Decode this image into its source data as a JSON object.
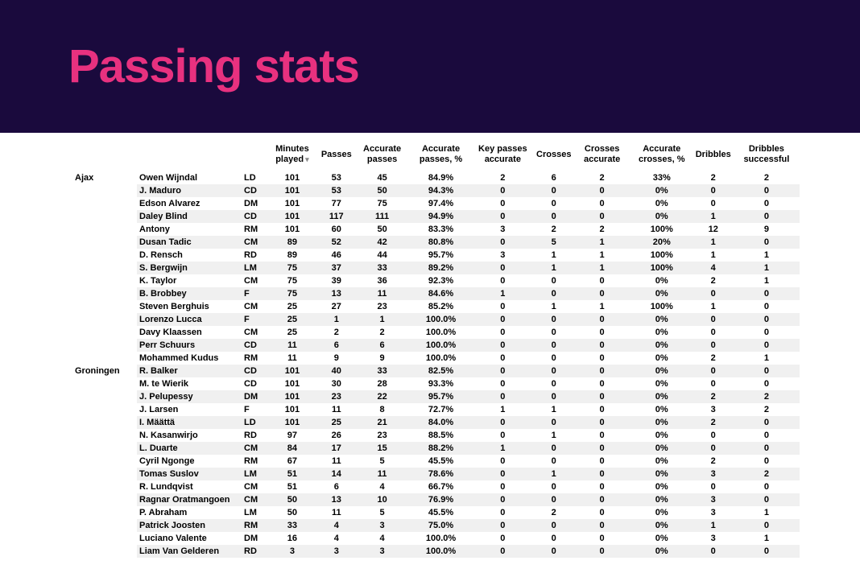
{
  "header": {
    "title": "Passing stats"
  },
  "colors": {
    "banner_bg": "#1a0a3d",
    "title": "#e8317f",
    "row_alt": "#f0f0f0",
    "text": "#000000"
  },
  "table": {
    "columns": [
      "",
      "",
      "",
      "Minutes played",
      "Passes",
      "Accurate passes",
      "Accurate passes, %",
      "Key passes accurate",
      "Crosses",
      "Crosses accurate",
      "Accurate crosses, %",
      "Dribbles",
      "Dribbles successful"
    ],
    "sort_column_index": 3,
    "teams": [
      {
        "name": "Ajax",
        "players": [
          {
            "name": "Owen Wijndal",
            "pos": "LD",
            "min": "101",
            "pass": "53",
            "acc": "45",
            "accp": "84.9%",
            "key": "2",
            "cr": "6",
            "cra": "2",
            "crp": "33%",
            "dr": "2",
            "drs": "2"
          },
          {
            "name": "J. Maduro",
            "pos": "CD",
            "min": "101",
            "pass": "53",
            "acc": "50",
            "accp": "94.3%",
            "key": "0",
            "cr": "0",
            "cra": "0",
            "crp": "0%",
            "dr": "0",
            "drs": "0"
          },
          {
            "name": "Edson Alvarez",
            "pos": "DM",
            "min": "101",
            "pass": "77",
            "acc": "75",
            "accp": "97.4%",
            "key": "0",
            "cr": "0",
            "cra": "0",
            "crp": "0%",
            "dr": "0",
            "drs": "0"
          },
          {
            "name": "Daley Blind",
            "pos": "CD",
            "min": "101",
            "pass": "117",
            "acc": "111",
            "accp": "94.9%",
            "key": "0",
            "cr": "0",
            "cra": "0",
            "crp": "0%",
            "dr": "1",
            "drs": "0"
          },
          {
            "name": "Antony",
            "pos": "RM",
            "min": "101",
            "pass": "60",
            "acc": "50",
            "accp": "83.3%",
            "key": "3",
            "cr": "2",
            "cra": "2",
            "crp": "100%",
            "dr": "12",
            "drs": "9"
          },
          {
            "name": "Dusan Tadic",
            "pos": "CM",
            "min": "89",
            "pass": "52",
            "acc": "42",
            "accp": "80.8%",
            "key": "0",
            "cr": "5",
            "cra": "1",
            "crp": "20%",
            "dr": "1",
            "drs": "0"
          },
          {
            "name": "D. Rensch",
            "pos": "RD",
            "min": "89",
            "pass": "46",
            "acc": "44",
            "accp": "95.7%",
            "key": "3",
            "cr": "1",
            "cra": "1",
            "crp": "100%",
            "dr": "1",
            "drs": "1"
          },
          {
            "name": "S. Bergwijn",
            "pos": "LM",
            "min": "75",
            "pass": "37",
            "acc": "33",
            "accp": "89.2%",
            "key": "0",
            "cr": "1",
            "cra": "1",
            "crp": "100%",
            "dr": "4",
            "drs": "1"
          },
          {
            "name": "K. Taylor",
            "pos": "CM",
            "min": "75",
            "pass": "39",
            "acc": "36",
            "accp": "92.3%",
            "key": "0",
            "cr": "0",
            "cra": "0",
            "crp": "0%",
            "dr": "2",
            "drs": "1"
          },
          {
            "name": "B. Brobbey",
            "pos": "F",
            "min": "75",
            "pass": "13",
            "acc": "11",
            "accp": "84.6%",
            "key": "1",
            "cr": "0",
            "cra": "0",
            "crp": "0%",
            "dr": "0",
            "drs": "0"
          },
          {
            "name": "Steven Berghuis",
            "pos": "CM",
            "min": "25",
            "pass": "27",
            "acc": "23",
            "accp": "85.2%",
            "key": "0",
            "cr": "1",
            "cra": "1",
            "crp": "100%",
            "dr": "1",
            "drs": "0"
          },
          {
            "name": "Lorenzo Lucca",
            "pos": "F",
            "min": "25",
            "pass": "1",
            "acc": "1",
            "accp": "100.0%",
            "key": "0",
            "cr": "0",
            "cra": "0",
            "crp": "0%",
            "dr": "0",
            "drs": "0"
          },
          {
            "name": "Davy Klaassen",
            "pos": "CM",
            "min": "25",
            "pass": "2",
            "acc": "2",
            "accp": "100.0%",
            "key": "0",
            "cr": "0",
            "cra": "0",
            "crp": "0%",
            "dr": "0",
            "drs": "0"
          },
          {
            "name": "Perr Schuurs",
            "pos": "CD",
            "min": "11",
            "pass": "6",
            "acc": "6",
            "accp": "100.0%",
            "key": "0",
            "cr": "0",
            "cra": "0",
            "crp": "0%",
            "dr": "0",
            "drs": "0"
          },
          {
            "name": "Mohammed Kudus",
            "pos": "RM",
            "min": "11",
            "pass": "9",
            "acc": "9",
            "accp": "100.0%",
            "key": "0",
            "cr": "0",
            "cra": "0",
            "crp": "0%",
            "dr": "2",
            "drs": "1"
          }
        ]
      },
      {
        "name": "Groningen",
        "players": [
          {
            "name": "R. Balker",
            "pos": "CD",
            "min": "101",
            "pass": "40",
            "acc": "33",
            "accp": "82.5%",
            "key": "0",
            "cr": "0",
            "cra": "0",
            "crp": "0%",
            "dr": "0",
            "drs": "0"
          },
          {
            "name": "M. te Wierik",
            "pos": "CD",
            "min": "101",
            "pass": "30",
            "acc": "28",
            "accp": "93.3%",
            "key": "0",
            "cr": "0",
            "cra": "0",
            "crp": "0%",
            "dr": "0",
            "drs": "0"
          },
          {
            "name": "J. Pelupessy",
            "pos": "DM",
            "min": "101",
            "pass": "23",
            "acc": "22",
            "accp": "95.7%",
            "key": "0",
            "cr": "0",
            "cra": "0",
            "crp": "0%",
            "dr": "2",
            "drs": "2"
          },
          {
            "name": "J. Larsen",
            "pos": "F",
            "min": "101",
            "pass": "11",
            "acc": "8",
            "accp": "72.7%",
            "key": "1",
            "cr": "1",
            "cra": "0",
            "crp": "0%",
            "dr": "3",
            "drs": "2"
          },
          {
            "name": "I. Määttä",
            "pos": "LD",
            "min": "101",
            "pass": "25",
            "acc": "21",
            "accp": "84.0%",
            "key": "0",
            "cr": "0",
            "cra": "0",
            "crp": "0%",
            "dr": "2",
            "drs": "0"
          },
          {
            "name": "N. Kasanwirjo",
            "pos": "RD",
            "min": "97",
            "pass": "26",
            "acc": "23",
            "accp": "88.5%",
            "key": "0",
            "cr": "1",
            "cra": "0",
            "crp": "0%",
            "dr": "0",
            "drs": "0"
          },
          {
            "name": "L. Duarte",
            "pos": "CM",
            "min": "84",
            "pass": "17",
            "acc": "15",
            "accp": "88.2%",
            "key": "1",
            "cr": "0",
            "cra": "0",
            "crp": "0%",
            "dr": "0",
            "drs": "0"
          },
          {
            "name": "Cyril Ngonge",
            "pos": "RM",
            "min": "67",
            "pass": "11",
            "acc": "5",
            "accp": "45.5%",
            "key": "0",
            "cr": "0",
            "cra": "0",
            "crp": "0%",
            "dr": "2",
            "drs": "0"
          },
          {
            "name": "Tomas Suslov",
            "pos": "LM",
            "min": "51",
            "pass": "14",
            "acc": "11",
            "accp": "78.6%",
            "key": "0",
            "cr": "1",
            "cra": "0",
            "crp": "0%",
            "dr": "3",
            "drs": "2"
          },
          {
            "name": "R. Lundqvist",
            "pos": "CM",
            "min": "51",
            "pass": "6",
            "acc": "4",
            "accp": "66.7%",
            "key": "0",
            "cr": "0",
            "cra": "0",
            "crp": "0%",
            "dr": "0",
            "drs": "0"
          },
          {
            "name": "Ragnar Oratmangoen",
            "pos": "CM",
            "min": "50",
            "pass": "13",
            "acc": "10",
            "accp": "76.9%",
            "key": "0",
            "cr": "0",
            "cra": "0",
            "crp": "0%",
            "dr": "3",
            "drs": "0"
          },
          {
            "name": "P. Abraham",
            "pos": "LM",
            "min": "50",
            "pass": "11",
            "acc": "5",
            "accp": "45.5%",
            "key": "0",
            "cr": "2",
            "cra": "0",
            "crp": "0%",
            "dr": "3",
            "drs": "1"
          },
          {
            "name": "Patrick Joosten",
            "pos": "RM",
            "min": "33",
            "pass": "4",
            "acc": "3",
            "accp": "75.0%",
            "key": "0",
            "cr": "0",
            "cra": "0",
            "crp": "0%",
            "dr": "1",
            "drs": "0"
          },
          {
            "name": "Luciano Valente",
            "pos": "DM",
            "min": "16",
            "pass": "4",
            "acc": "4",
            "accp": "100.0%",
            "key": "0",
            "cr": "0",
            "cra": "0",
            "crp": "0%",
            "dr": "3",
            "drs": "1"
          },
          {
            "name": "Liam Van Gelderen",
            "pos": "RD",
            "min": "3",
            "pass": "3",
            "acc": "3",
            "accp": "100.0%",
            "key": "0",
            "cr": "0",
            "cra": "0",
            "crp": "0%",
            "dr": "0",
            "drs": "0"
          }
        ]
      }
    ]
  }
}
